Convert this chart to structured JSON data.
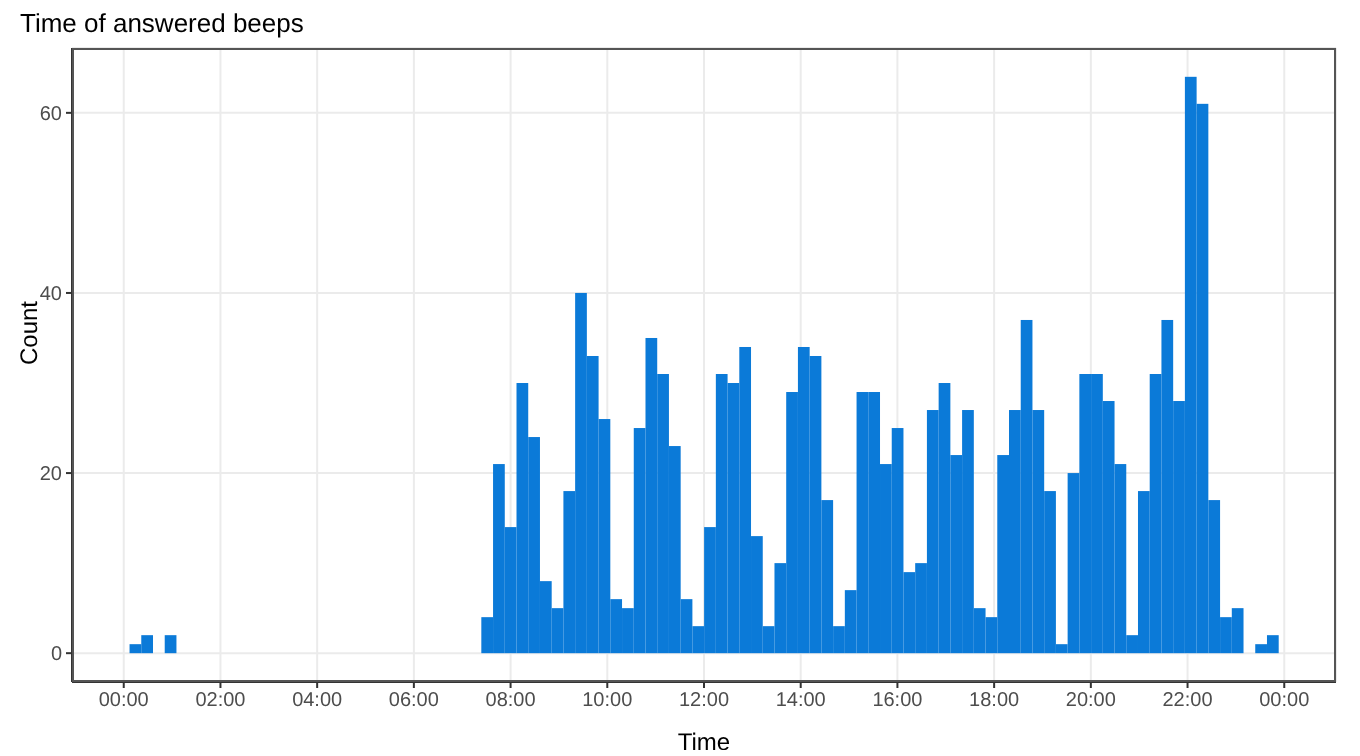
{
  "chart_data": {
    "type": "histogram",
    "title": "Time of answered beeps",
    "xlabel": "Time",
    "ylabel": "Count",
    "bins": [
      0.12,
      0.3625,
      0.605,
      0.8475,
      1.09,
      1.3325,
      1.575,
      1.8175,
      2.06,
      2.3025,
      2.545,
      2.7875,
      3.03,
      3.2725,
      3.515,
      3.7575,
      4.0,
      4.2425,
      4.485,
      4.7275,
      4.97,
      5.2125,
      5.455,
      5.6975,
      5.94,
      6.1825,
      6.425,
      6.6675,
      6.91,
      7.1525,
      7.395,
      7.6375,
      7.88,
      8.1225,
      8.365,
      8.6075,
      8.85,
      9.0925,
      9.335,
      9.5775,
      9.82,
      10.0625,
      10.305,
      10.5475,
      10.79,
      11.0325,
      11.275,
      11.5175,
      11.76,
      12.0025,
      12.245,
      12.4875,
      12.73,
      12.9725,
      13.215,
      13.4575,
      13.7,
      13.9425,
      14.185,
      14.4275,
      14.67,
      14.9125,
      15.155,
      15.3975,
      15.64,
      15.8825,
      16.125,
      16.3675,
      16.61,
      16.8525,
      17.095,
      17.3375,
      17.58,
      17.8225,
      18.065,
      18.3075,
      18.55,
      18.7925,
      19.035,
      19.2775,
      19.52,
      19.7625,
      20.005,
      20.2475,
      20.49,
      20.7325,
      20.975,
      21.2175,
      21.46,
      21.7025,
      21.945,
      22.1875,
      22.43,
      22.6725,
      22.915,
      23.1575,
      23.4,
      23.6425,
      23.885
    ],
    "values": [
      1,
      2,
      0,
      2,
      0,
      0,
      0,
      0,
      0,
      0,
      0,
      0,
      0,
      0,
      0,
      0,
      0,
      0,
      0,
      0,
      0,
      0,
      0,
      0,
      0,
      0,
      0,
      0,
      0,
      0,
      4,
      21,
      14,
      30,
      24,
      8,
      5,
      18,
      40,
      33,
      26,
      6,
      5,
      25,
      35,
      31,
      23,
      6,
      3,
      14,
      31,
      30,
      34,
      13,
      3,
      10,
      29,
      34,
      33,
      17,
      3,
      7,
      29,
      29,
      21,
      25,
      9,
      10,
      27,
      30,
      22,
      27,
      5,
      4,
      22,
      27,
      37,
      27,
      18,
      1,
      20,
      31,
      31,
      28,
      21,
      2,
      18,
      31,
      37,
      28,
      64,
      61,
      17,
      4,
      5,
      0,
      1,
      2
    ],
    "color": "#0b7ad8",
    "xlim": [
      -1.07,
      25.07
    ],
    "xticks": [
      {
        "value": 0,
        "label": "00:00"
      },
      {
        "value": 2,
        "label": "02:00"
      },
      {
        "value": 4,
        "label": "04:00"
      },
      {
        "value": 6,
        "label": "06:00"
      },
      {
        "value": 8,
        "label": "08:00"
      },
      {
        "value": 10,
        "label": "10:00"
      },
      {
        "value": 12,
        "label": "12:00"
      },
      {
        "value": 14,
        "label": "14:00"
      },
      {
        "value": 16,
        "label": "16:00"
      },
      {
        "value": 18,
        "label": "18:00"
      },
      {
        "value": 20,
        "label": "20:00"
      },
      {
        "value": 22,
        "label": "22:00"
      },
      {
        "value": 24,
        "label": "00:00"
      }
    ],
    "ylim": [
      -3.2,
      67.2
    ],
    "yticks": [
      0,
      20,
      40,
      60
    ],
    "grid": true
  }
}
